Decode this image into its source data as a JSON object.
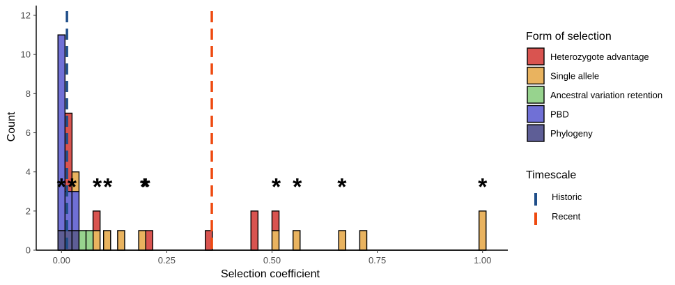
{
  "chart_data": {
    "type": "bar",
    "subtype": "stacked-histogram",
    "title": "",
    "xlabel": "Selection coefficient",
    "ylabel": "Count",
    "xlim": [
      -0.06,
      1.06
    ],
    "ylim": [
      0,
      12.5
    ],
    "x_ticks": [
      0,
      0.25,
      0.5,
      0.75,
      1
    ],
    "x_tick_labels": [
      "0.00",
      "0.25",
      "0.50",
      "0.75",
      "1.00"
    ],
    "y_ticks": [
      0,
      2,
      4,
      6,
      8,
      10,
      12
    ],
    "y_tick_labels": [
      "0",
      "2",
      "4",
      "6",
      "8",
      "10",
      "12"
    ],
    "grid": false,
    "bin_width": 0.0167,
    "series": [
      {
        "name": "Heterozygote advantage",
        "color": "#D95450",
        "bins": [
          {
            "x": 0.0167,
            "count": 4
          },
          {
            "x": 0.0833,
            "count": 1
          },
          {
            "x": 0.2083,
            "count": 1
          },
          {
            "x": 0.35,
            "count": 1
          },
          {
            "x": 0.4583,
            "count": 2
          },
          {
            "x": 0.5083,
            "count": 1
          }
        ]
      },
      {
        "name": "Single allele",
        "color": "#E9B35F",
        "bins": [
          {
            "x": 0.0333,
            "count": 1
          },
          {
            "x": 0.0833,
            "count": 1
          },
          {
            "x": 0.1083,
            "count": 1
          },
          {
            "x": 0.1417,
            "count": 1
          },
          {
            "x": 0.1917,
            "count": 1
          },
          {
            "x": 0.5083,
            "count": 1
          },
          {
            "x": 0.5583,
            "count": 1
          },
          {
            "x": 0.6667,
            "count": 1
          },
          {
            "x": 0.7167,
            "count": 1
          },
          {
            "x": 1.0,
            "count": 2
          }
        ]
      },
      {
        "name": "Ancestral variation retention",
        "color": "#97D38E",
        "bins": [
          {
            "x": 0.05,
            "count": 1
          },
          {
            "x": 0.0667,
            "count": 1
          }
        ]
      },
      {
        "name": "PBD",
        "color": "#7070D6",
        "bins": [
          {
            "x": 0.0,
            "count": 10
          },
          {
            "x": 0.0167,
            "count": 2
          },
          {
            "x": 0.0333,
            "count": 2
          }
        ]
      },
      {
        "name": "Phylogeny",
        "color": "#5E5E96",
        "bins": [
          {
            "x": 0.0,
            "count": 1
          },
          {
            "x": 0.0167,
            "count": 1
          },
          {
            "x": 0.0333,
            "count": 1
          }
        ]
      }
    ],
    "vlines": [
      {
        "name": "Historic",
        "x": 0.013,
        "color": "#1F4E89",
        "style": "dashed"
      },
      {
        "name": "Recent",
        "x": 0.357,
        "color": "#EE4A10",
        "style": "dashed"
      }
    ],
    "annotations": [
      {
        "text": "*",
        "x": 0.0,
        "y": 3.5
      },
      {
        "text": "*",
        "x": 0.025,
        "y": 3.5
      },
      {
        "text": "*",
        "x": 0.085,
        "y": 3.5
      },
      {
        "text": "*",
        "x": 0.11,
        "y": 3.5
      },
      {
        "text": "*",
        "x": 0.197,
        "y": 3.5
      },
      {
        "text": "*",
        "x": 0.2,
        "y": 3.5
      },
      {
        "text": "*",
        "x": 0.51,
        "y": 3.5
      },
      {
        "text": "*",
        "x": 0.56,
        "y": 3.5
      },
      {
        "text": "*",
        "x": 0.666,
        "y": 3.5
      },
      {
        "text": "*",
        "x": 1.0,
        "y": 3.5
      }
    ],
    "legend": {
      "placement": "right",
      "fill_title": "Form of selection",
      "line_title": "Timescale"
    }
  }
}
